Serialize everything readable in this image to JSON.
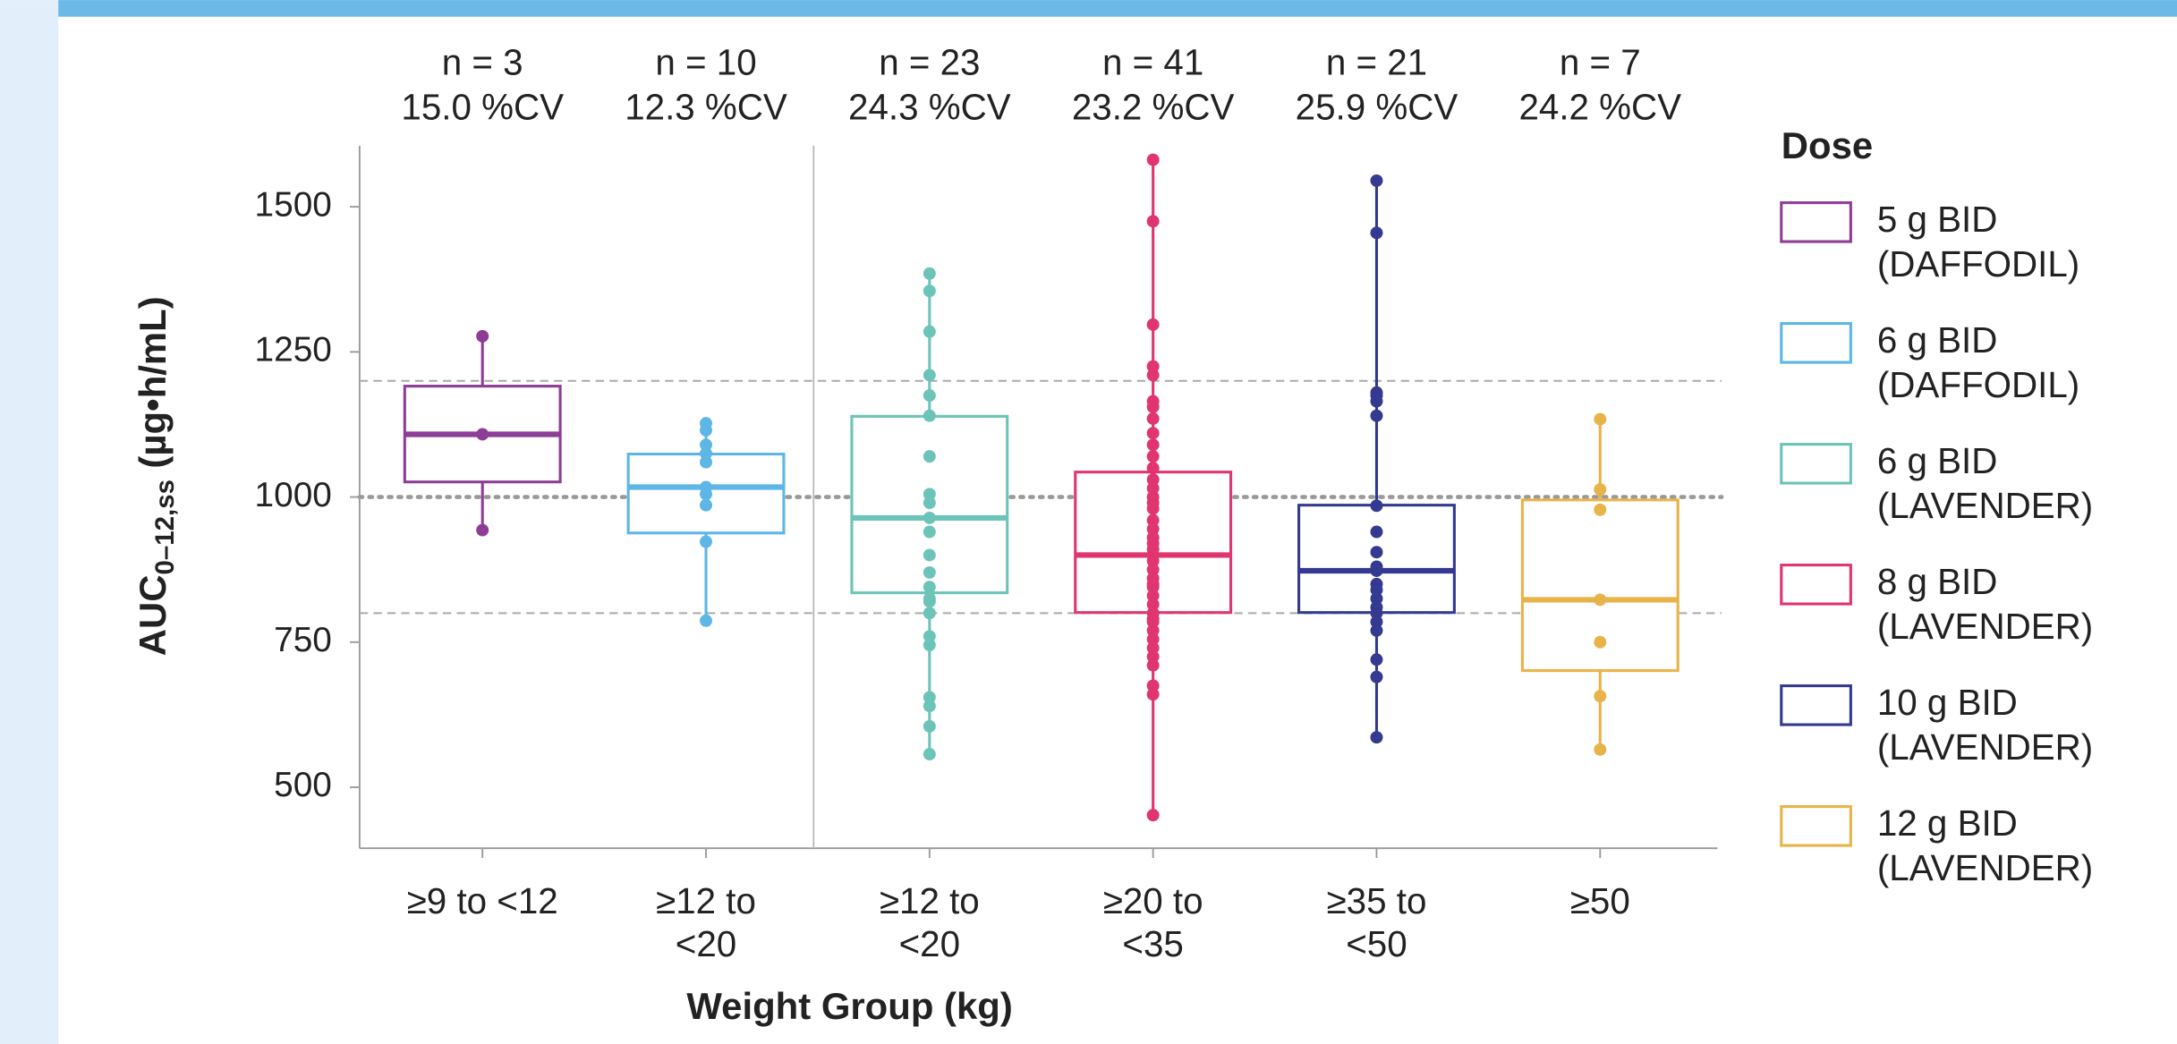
{
  "chart_data": {
    "type": "box",
    "x_label": "Weight Group (kg)",
    "y_label": {
      "main": "AUC",
      "sub": "0–12,ss",
      "unit": "(µg•h/mL)"
    },
    "legend_title": "Dose",
    "categories": [
      "≥9 to <12",
      "≥12 to <20",
      "≥12 to <20",
      "≥20 to <35",
      "≥35 to <50",
      "≥50"
    ],
    "ylim": [
      395,
      1605
    ],
    "yticks": [
      500,
      750,
      1000,
      1250,
      1500
    ],
    "reference_lines": {
      "dashed": [
        800,
        1200
      ],
      "dotted": [
        1000
      ]
    },
    "series": [
      {
        "name": "5 g BID (DAFFODIL)",
        "color": "#8e3d97",
        "n_label": "n = 3",
        "cv_label": "15.0 %CV",
        "q1": 1026,
        "median": 1108,
        "q3": 1191,
        "whisker_low": 943,
        "whisker_high": 1277,
        "points": [
          1277,
          1108,
          943
        ]
      },
      {
        "name": "6 g BID (DAFFODIL)",
        "color": "#5db6e6",
        "n_label": "n = 10",
        "cv_label": "12.3 %CV",
        "q1": 938,
        "median": 1017,
        "q3": 1074,
        "whisker_low": 787,
        "whisker_high": 1127,
        "points": [
          1127,
          1115,
          1090,
          1075,
          1060,
          1017,
          1005,
          986,
          923,
          787
        ]
      },
      {
        "name": "6 g BID (LAVENDER)",
        "color": "#6cc4b8",
        "n_label": "n = 23",
        "cv_label": "24.3 %CV",
        "q1": 835,
        "median": 964,
        "q3": 1139,
        "whisker_low": 557,
        "whisker_high": 1385,
        "points": [
          1385,
          1355,
          1285,
          1210,
          1175,
          1140,
          1070,
          1005,
          990,
          964,
          940,
          900,
          870,
          845,
          825,
          820,
          800,
          760,
          745,
          655,
          640,
          605,
          557
        ]
      },
      {
        "name": "8 g BID (LAVENDER)",
        "color": "#e0356e",
        "n_label": "n = 41",
        "cv_label": "23.2 %CV",
        "q1": 801,
        "median": 900,
        "q3": 1043,
        "whisker_low": 452,
        "whisker_high": 1581,
        "points": [
          1581,
          1475,
          1297,
          1225,
          1210,
          1165,
          1155,
          1135,
          1110,
          1090,
          1070,
          1050,
          1030,
          1015,
          1000,
          990,
          980,
          960,
          945,
          930,
          920,
          910,
          900,
          890,
          875,
          860,
          850,
          845,
          830,
          815,
          800,
          790,
          785,
          770,
          755,
          740,
          725,
          710,
          675,
          660,
          452
        ]
      },
      {
        "name": "10 g BID (LAVENDER)",
        "color": "#333a8f",
        "n_label": "n = 21",
        "cv_label": "25.9 %CV",
        "q1": 801,
        "median": 873,
        "q3": 986,
        "whisker_low": 586,
        "whisker_high": 1545,
        "points": [
          1545,
          1455,
          1180,
          1175,
          1165,
          1140,
          985,
          940,
          905,
          880,
          873,
          850,
          840,
          825,
          810,
          800,
          785,
          770,
          720,
          690,
          586
        ]
      },
      {
        "name": "12 g BID (LAVENDER)",
        "color": "#e8b44a",
        "n_label": "n = 7",
        "cv_label": "24.2 %CV",
        "q1": 701,
        "median": 823,
        "q3": 995,
        "whisker_low": 565,
        "whisker_high": 1134,
        "points": [
          1134,
          1013,
          978,
          823,
          750,
          657,
          565
        ]
      }
    ]
  }
}
